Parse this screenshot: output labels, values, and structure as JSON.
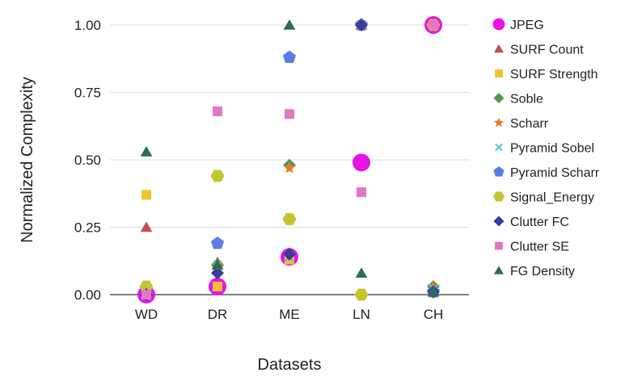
{
  "chart_data": {
    "type": "scatter",
    "title": "",
    "xlabel": "Datasets",
    "ylabel": "Normalized Complexity",
    "categories": [
      "WD",
      "DR",
      "ME",
      "LN",
      "CH"
    ],
    "ylim": [
      0,
      1
    ],
    "yticks": [
      0,
      0.25,
      0.5,
      0.75,
      1.0
    ],
    "ytick_labels": [
      "0.00",
      "0.25",
      "0.50",
      "0.75",
      "1.00"
    ],
    "grid": true,
    "legend_position": "right",
    "series": [
      {
        "name": "JPEG",
        "marker": "circle-large",
        "color": "#e514e5",
        "values": [
          0.0,
          0.03,
          0.14,
          0.49,
          1.0
        ]
      },
      {
        "name": "SURF Count",
        "marker": "triangle",
        "color": "#c0504d",
        "values": [
          0.25,
          0.12,
          0.14,
          1.0,
          1.0
        ]
      },
      {
        "name": "SURF Strength",
        "marker": "square",
        "color": "#f1c232",
        "values": [
          0.37,
          0.03,
          0.13,
          1.0,
          1.0
        ]
      },
      {
        "name": "Soble",
        "marker": "diamond",
        "color": "#4e9a4e",
        "values": [
          0.0,
          0.11,
          0.48,
          1.0,
          0.03
        ]
      },
      {
        "name": "Scharr",
        "marker": "star",
        "color": "#e67e22",
        "values": [
          0.0,
          0.11,
          0.47,
          1.0,
          0.03
        ]
      },
      {
        "name": "Pyramid Sobel",
        "marker": "x",
        "color": "#4ec3d9",
        "values": [
          0.0,
          0.11,
          0.14,
          1.0,
          0.02
        ]
      },
      {
        "name": "Pyramid Scharr",
        "marker": "pentagon",
        "color": "#5b7ee5",
        "values": [
          0.0,
          0.19,
          0.88,
          1.0,
          0.01
        ]
      },
      {
        "name": "Signal_Energy",
        "marker": "hexagon",
        "color": "#c5c530",
        "values": [
          0.03,
          0.44,
          0.28,
          0.0,
          1.0
        ]
      },
      {
        "name": "Clutter FC",
        "marker": "diamond",
        "color": "#3b3b9a",
        "values": [
          0.0,
          0.08,
          0.15,
          1.0,
          0.01
        ]
      },
      {
        "name": "Clutter SE",
        "marker": "square",
        "color": "#e377c2",
        "values": [
          0.0,
          0.68,
          0.67,
          0.38,
          1.0
        ]
      },
      {
        "name": "FG Density",
        "marker": "triangle",
        "color": "#2e6b5a",
        "values": [
          0.53,
          0.11,
          1.0,
          0.08,
          0.01
        ]
      }
    ]
  }
}
